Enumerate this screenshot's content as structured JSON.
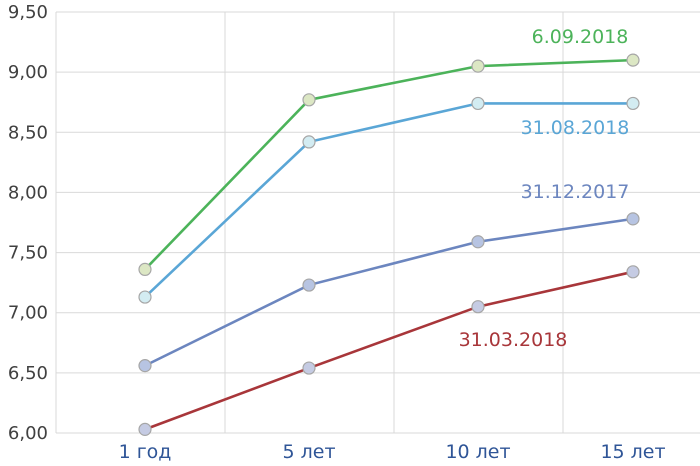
{
  "chart_data": {
    "type": "line",
    "categories": [
      "1 год",
      "5 лет",
      "10 лет",
      "15 лет"
    ],
    "ylim": [
      6.0,
      9.5
    ],
    "yticks": [
      "6,00",
      "6,50",
      "7,00",
      "7,50",
      "8,00",
      "8,50",
      "9,00",
      "9,50"
    ],
    "grid": true,
    "series": [
      {
        "name": "6.09.2018",
        "values": [
          7.36,
          8.77,
          9.05,
          9.1
        ],
        "color": "#4cb35a",
        "marker": "#dce7c4"
      },
      {
        "name": "31.08.2018",
        "values": [
          7.13,
          8.42,
          8.74,
          8.74
        ],
        "color": "#5aa6d6",
        "marker": "#d3ecf2"
      },
      {
        "name": "31.12.2017",
        "values": [
          6.56,
          7.23,
          7.59,
          7.78
        ],
        "color": "#6c86bf",
        "marker": "#b7c4e2"
      },
      {
        "name": "31.03.2018",
        "values": [
          6.03,
          6.54,
          7.05,
          7.34
        ],
        "color": "#a8363a",
        "marker": "#c5cbe3"
      }
    ]
  }
}
